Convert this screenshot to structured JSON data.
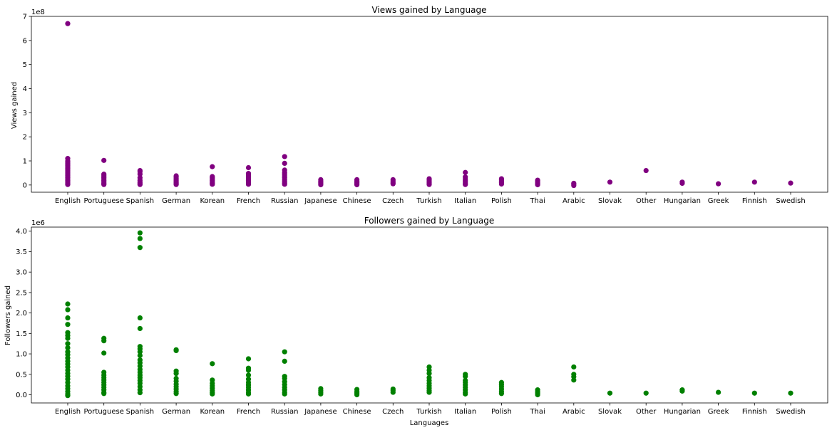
{
  "chart_data": [
    {
      "type": "scatter",
      "title": "Views gained by Language",
      "xlabel": "",
      "ylabel": "Views gained",
      "offset_text": "1e8",
      "ylim": [
        -0.3,
        7.0
      ],
      "yticks": [
        0,
        1,
        2,
        3,
        4,
        5,
        6,
        7
      ],
      "color": "#800080",
      "categories": [
        "English",
        "Portuguese",
        "Spanish",
        "German",
        "Korean",
        "French",
        "Russian",
        "Japanese",
        "Chinese",
        "Czech",
        "Turkish",
        "Italian",
        "Polish",
        "Thai",
        "Arabic",
        "Slovak",
        "Other",
        "Hungarian",
        "Greek",
        "Finnish",
        "Swedish"
      ],
      "points": {
        "English": [
          6.7,
          1.1,
          1.0,
          0.95,
          0.9,
          0.85,
          0.8,
          0.75,
          0.7,
          0.65,
          0.6,
          0.55,
          0.5,
          0.45,
          0.4,
          0.35,
          0.3,
          0.25,
          0.2,
          0.15,
          0.1,
          0.05,
          0.02
        ],
        "Portuguese": [
          1.02,
          0.45,
          0.4,
          0.35,
          0.3,
          0.25,
          0.2,
          0.15,
          0.1,
          0.05,
          0.02
        ],
        "Spanish": [
          0.6,
          0.55,
          0.45,
          0.3,
          0.2,
          0.12,
          0.08,
          0.04,
          0.02
        ],
        "German": [
          0.38,
          0.33,
          0.28,
          0.23,
          0.18,
          0.13,
          0.09,
          0.05,
          0.02
        ],
        "Korean": [
          0.76,
          0.35,
          0.3,
          0.25,
          0.2,
          0.15,
          0.1,
          0.06,
          0.03
        ],
        "French": [
          0.72,
          0.48,
          0.44,
          0.38,
          0.32,
          0.26,
          0.2,
          0.14,
          0.08,
          0.03
        ],
        "Russian": [
          1.18,
          0.9,
          0.62,
          0.52,
          0.45,
          0.38,
          0.3,
          0.22,
          0.15,
          0.08,
          0.03
        ],
        "Japanese": [
          0.22,
          0.17,
          0.12,
          0.08,
          0.04,
          0.01
        ],
        "Chinese": [
          0.22,
          0.17,
          0.12,
          0.08,
          0.04,
          0.01
        ],
        "Czech": [
          0.22,
          0.16,
          0.1,
          0.05
        ],
        "Turkish": [
          0.26,
          0.21,
          0.16,
          0.11,
          0.06,
          0.02
        ],
        "Italian": [
          0.52,
          0.33,
          0.25,
          0.18,
          0.12,
          0.06,
          0.02
        ],
        "Polish": [
          0.26,
          0.21,
          0.15,
          0.09,
          0.04
        ],
        "Thai": [
          0.2,
          0.15,
          0.1,
          0.05,
          0.01
        ],
        "Arabic": [
          0.07,
          0.03,
          -0.02
        ],
        "Slovak": [
          0.12
        ],
        "Other": [
          0.6
        ],
        "Hungarian": [
          0.12,
          0.07
        ],
        "Greek": [
          0.05
        ],
        "Finnish": [
          0.12
        ],
        "Swedish": [
          0.08
        ]
      }
    },
    {
      "type": "scatter",
      "title": "Followers gained by Language",
      "xlabel": "Languages",
      "ylabel": "Followers gained",
      "offset_text": "1e6",
      "ylim": [
        -0.2,
        4.1
      ],
      "yticks": [
        "0.0",
        "0.5",
        "1.0",
        "1.5",
        "2.0",
        "2.5",
        "3.0",
        "3.5",
        "4.0"
      ],
      "color": "#008000",
      "categories": [
        "English",
        "Portuguese",
        "Spanish",
        "German",
        "Korean",
        "French",
        "Russian",
        "Japanese",
        "Chinese",
        "Czech",
        "Turkish",
        "Italian",
        "Polish",
        "Thai",
        "Arabic",
        "Slovak",
        "Other",
        "Hungarian",
        "Greek",
        "Finnish",
        "Swedish"
      ],
      "points": {
        "English": [
          2.22,
          2.08,
          1.88,
          1.72,
          1.52,
          1.45,
          1.38,
          1.25,
          1.15,
          1.05,
          0.98,
          0.9,
          0.82,
          0.75,
          0.68,
          0.6,
          0.52,
          0.45,
          0.38,
          0.3,
          0.22,
          0.15,
          0.08,
          0.02,
          -0.02
        ],
        "Portuguese": [
          1.38,
          1.32,
          1.02,
          0.55,
          0.48,
          0.42,
          0.36,
          0.3,
          0.24,
          0.18,
          0.12,
          0.06,
          0.03
        ],
        "Spanish": [
          3.96,
          3.82,
          3.6,
          1.88,
          1.62,
          1.18,
          1.12,
          1.05,
          0.96,
          0.85,
          0.78,
          0.7,
          0.62,
          0.55,
          0.48,
          0.42,
          0.35,
          0.28,
          0.2,
          0.12,
          0.05
        ],
        "German": [
          1.1,
          1.08,
          0.58,
          0.52,
          0.4,
          0.33,
          0.26,
          0.2,
          0.14,
          0.08,
          0.03
        ],
        "Korean": [
          0.76,
          0.36,
          0.28,
          0.22,
          0.16,
          0.1,
          0.05,
          0.02
        ],
        "French": [
          0.88,
          0.65,
          0.6,
          0.48,
          0.38,
          0.3,
          0.24,
          0.18,
          0.12,
          0.06,
          0.02
        ],
        "Russian": [
          1.05,
          0.82,
          0.45,
          0.4,
          0.32,
          0.25,
          0.18,
          0.12,
          0.06,
          0.02
        ],
        "Japanese": [
          0.15,
          0.1,
          0.06,
          0.02
        ],
        "Chinese": [
          0.13,
          0.08,
          0.04,
          0.0
        ],
        "Czech": [
          0.14,
          0.1,
          0.06
        ],
        "Turkish": [
          0.68,
          0.6,
          0.52,
          0.42,
          0.35,
          0.28,
          0.22,
          0.16,
          0.1,
          0.06
        ],
        "Italian": [
          0.5,
          0.45,
          0.35,
          0.3,
          0.24,
          0.18,
          0.12,
          0.06,
          0.02
        ],
        "Polish": [
          0.3,
          0.25,
          0.2,
          0.14,
          0.08,
          0.03
        ],
        "Thai": [
          0.12,
          0.08,
          0.04,
          0.0
        ],
        "Arabic": [
          0.68,
          0.5,
          0.44,
          0.36
        ],
        "Slovak": [
          0.04
        ],
        "Other": [
          0.04
        ],
        "Hungarian": [
          0.12,
          0.09
        ],
        "Greek": [
          0.06
        ],
        "Finnish": [
          0.04
        ],
        "Swedish": [
          0.04
        ]
      }
    }
  ]
}
